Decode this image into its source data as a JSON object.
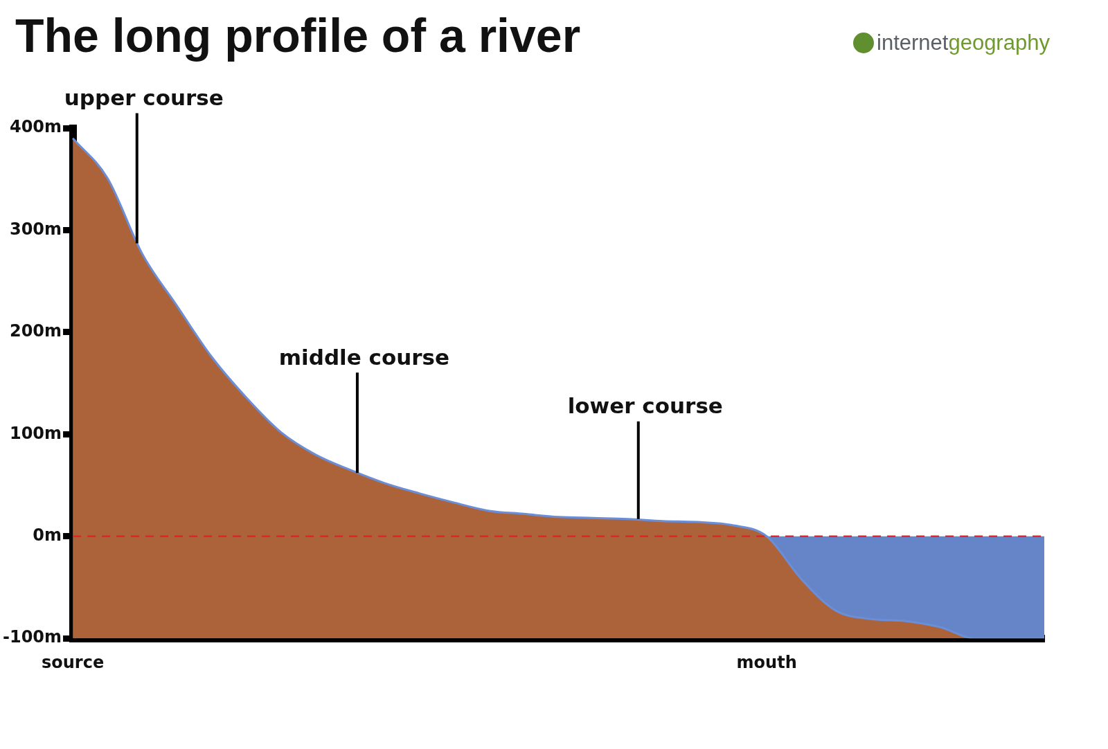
{
  "chart_data": {
    "type": "area",
    "title": "The long profile of a river",
    "logo": [
      "internet",
      "geography"
    ],
    "categories": [
      "source",
      null,
      null,
      null,
      null,
      null,
      null,
      null,
      null,
      null,
      null,
      null,
      null,
      null,
      null,
      null,
      null,
      null,
      null,
      null,
      "mouth",
      null,
      null,
      null,
      null,
      null,
      null,
      null,
      null
    ],
    "series": [
      {
        "type": "line",
        "color": "#e0242b",
        "line_style": "dashed",
        "values": [
          0,
          0,
          0,
          0,
          0,
          0,
          0,
          0,
          0,
          0,
          0,
          0,
          0,
          0,
          0,
          0,
          0,
          0,
          0,
          0,
          0,
          0,
          0,
          0,
          0,
          0,
          0,
          0,
          0
        ]
      },
      {
        "type": "area",
        "color": "#ad633a",
        "values": [
          390,
          351,
          277,
          226,
          176,
          136,
          102,
          80,
          65,
          52,
          42,
          33,
          25,
          22,
          19,
          18,
          17,
          15,
          14,
          11,
          0,
          -42,
          -73,
          -81,
          -83,
          -89,
          -100,
          -100,
          -100
        ]
      },
      {
        "type": "area",
        "color": "#6685c9",
        "values": [
          null,
          null,
          null,
          null,
          null,
          null,
          null,
          null,
          null,
          null,
          null,
          null,
          null,
          null,
          null,
          null,
          null,
          null,
          null,
          null,
          0,
          0,
          0,
          0,
          0,
          0,
          0,
          0,
          0
        ]
      }
    ],
    "ylim": [
      -100,
      400
    ],
    "yticks": [
      {
        "value": -100,
        "label": "-100m"
      },
      {
        "value": 0,
        "label": "0m"
      },
      {
        "value": 100,
        "label": "100m"
      },
      {
        "value": 200,
        "label": "200m"
      },
      {
        "value": 300,
        "label": "300m"
      },
      {
        "value": 400,
        "label": "400m"
      }
    ],
    "grid": false,
    "annotations": [
      {
        "text": "upper course",
        "x": 1.85,
        "y": 287
      },
      {
        "text": "middle course",
        "x": 8.2,
        "y": 62
      },
      {
        "text": "lower course",
        "x": 16.3,
        "y": 17
      }
    ]
  }
}
